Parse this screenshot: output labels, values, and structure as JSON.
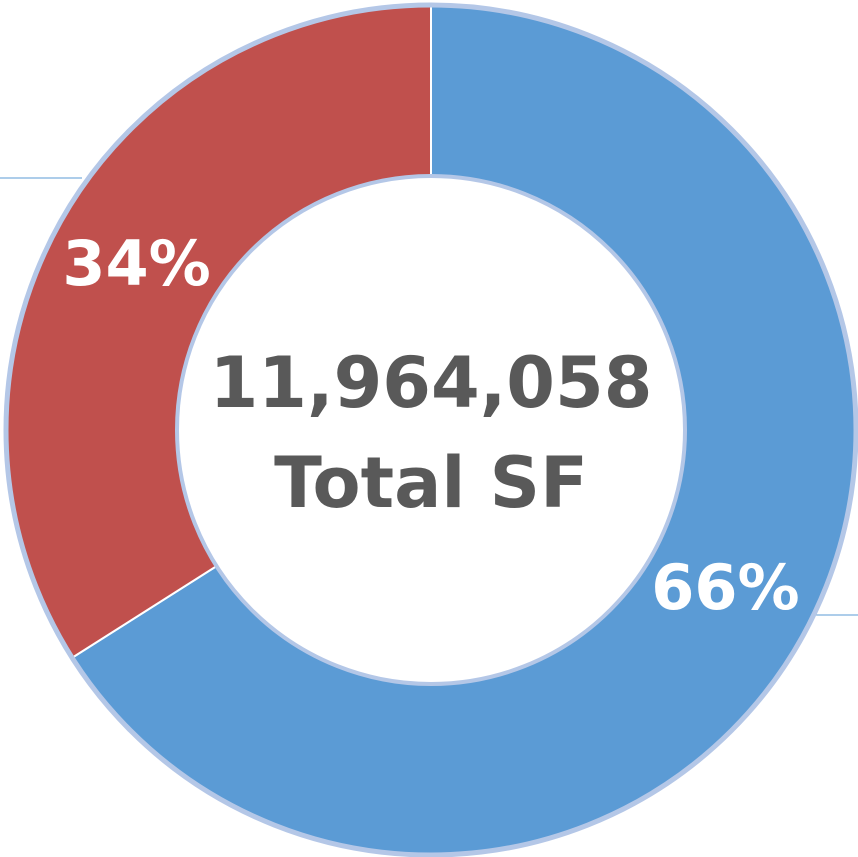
{
  "chart_data": {
    "type": "donut",
    "values": [
      66,
      34
    ],
    "value_labels": [
      "66%",
      "34%"
    ],
    "colors": [
      "#5b9bd5",
      "#c0504d"
    ],
    "annotations": [
      "11,964,058",
      "Total SF"
    ]
  }
}
